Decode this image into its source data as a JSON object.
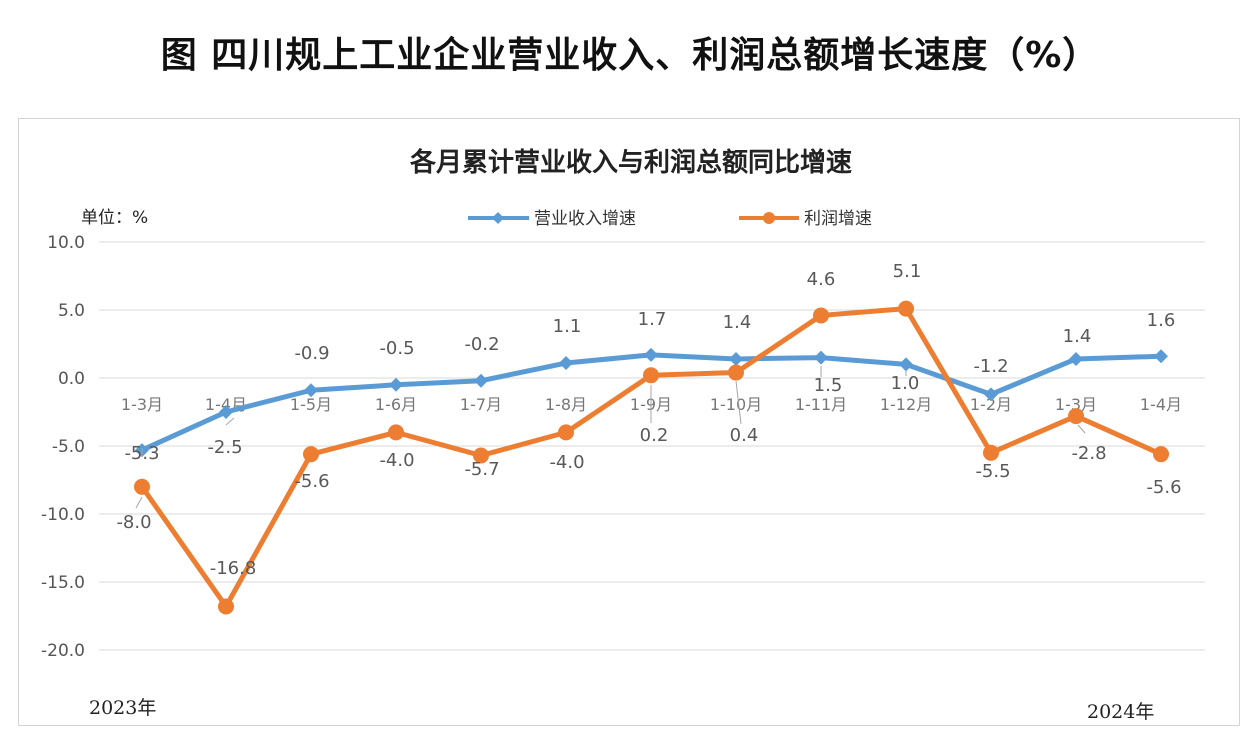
{
  "page": {
    "title": "图 四川规上工业企业营业收入、利润总额增长速度（%）"
  },
  "chart_data": {
    "type": "line",
    "title": "各月累计营业收入与利润总额同比增速",
    "unit_label": "单位：%",
    "categories": [
      "1-3月",
      "1-4月",
      "1-5月",
      "1-6月",
      "1-7月",
      "1-8月",
      "1-9月",
      "1-10月",
      "1-11月",
      "1-12月",
      "1-2月",
      "1-3月",
      "1-4月"
    ],
    "year_labels": [
      "2023年",
      "2024年"
    ],
    "ylim": [
      -20,
      10
    ],
    "yticks": [
      "10.0",
      "5.0",
      "0.0",
      "-5.0",
      "-10.0",
      "-15.0",
      "-20.0"
    ],
    "grid": true,
    "legend_position": "top",
    "series": [
      {
        "name": "营业收入增速",
        "color": "#5b9bd5",
        "values": [
          -5.3,
          -2.5,
          -0.9,
          -0.5,
          -0.2,
          1.1,
          1.7,
          1.4,
          1.5,
          1.0,
          -1.2,
          1.4,
          1.6
        ],
        "labels": [
          "-5.3",
          "-2.5",
          "-0.9",
          "-0.5",
          "-0.2",
          "1.1",
          "1.7",
          "1.4",
          "1.5",
          "1.0",
          "-1.2",
          "1.4",
          "1.6"
        ]
      },
      {
        "name": "利润增速",
        "color": "#ed7d31",
        "values": [
          -8.0,
          -16.8,
          -5.6,
          -4.0,
          -5.7,
          -4.0,
          0.2,
          0.4,
          4.6,
          5.1,
          -5.5,
          -2.8,
          -5.6
        ],
        "labels": [
          "-8.0",
          "-16.8",
          "-5.6",
          "-4.0",
          "-5.7",
          "-4.0",
          "0.2",
          "0.4",
          "4.6",
          "5.1",
          "-5.5",
          "-2.8",
          "-5.6"
        ]
      }
    ]
  }
}
